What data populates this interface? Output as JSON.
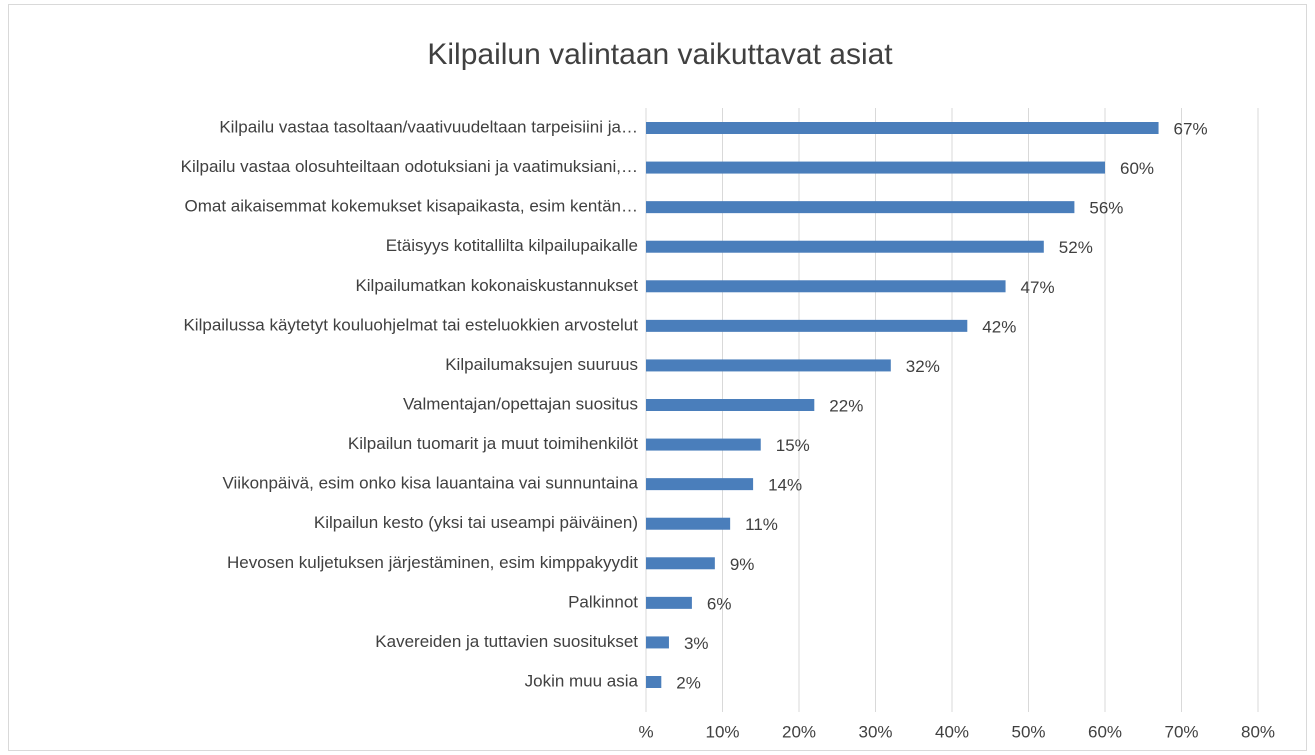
{
  "chart_data": {
    "type": "bar",
    "orientation": "horizontal",
    "title": "Kilpailun valintaan vaikuttavat asiat",
    "categories": [
      "Kilpailu vastaa tasoltaan/vaativuudeltaan tarpeisiini ja…",
      "Kilpailu vastaa olosuhteiltaan odotuksiani ja vaatimuksiani,…",
      "Omat aikaisemmat kokemukset kisapaikasta, esim kentän…",
      "Etäisyys kotitallilta kilpailupaikalle",
      "Kilpailumatkan kokonaiskustannukset",
      "Kilpailussa käytetyt kouluohjelmat tai esteluokkien arvostelut",
      "Kilpailumaksujen suuruus",
      "Valmentajan/opettajan suositus",
      "Kilpailun tuomarit ja muut toimihenkilöt",
      "Viikonpäivä, esim onko kisa lauantaina vai sunnuntaina",
      "Kilpailun kesto (yksi tai useampi päiväinen)",
      "Hevosen kuljetuksen järjestäminen, esim kimppakyydit",
      "Palkinnot",
      "Kavereiden ja tuttavien suositukset",
      "Jokin muu asia"
    ],
    "values": [
      67,
      60,
      56,
      52,
      47,
      42,
      32,
      22,
      15,
      14,
      11,
      9,
      6,
      3,
      2
    ],
    "value_labels": [
      "67%",
      "60%",
      "56%",
      "52%",
      "47%",
      "42%",
      "32%",
      "22%",
      "15%",
      "14%",
      "11%",
      "9%",
      "6%",
      "3%",
      "2%"
    ],
    "color": "#4a7ebb",
    "xlim": [
      0,
      80
    ],
    "xticks": [
      {
        "value": 0,
        "label": "%"
      },
      {
        "value": 10,
        "label": "10%"
      },
      {
        "value": 20,
        "label": "20%"
      },
      {
        "value": 30,
        "label": "30%"
      },
      {
        "value": 40,
        "label": "40%"
      },
      {
        "value": 50,
        "label": "50%"
      },
      {
        "value": 60,
        "label": "60%"
      },
      {
        "value": 70,
        "label": "70%"
      },
      {
        "value": 80,
        "label": "80%"
      }
    ],
    "grid": true
  }
}
